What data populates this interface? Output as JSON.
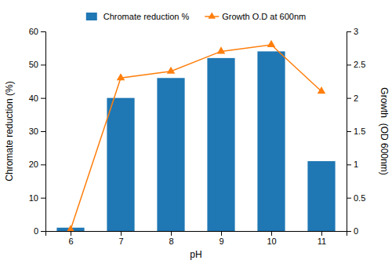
{
  "chart_data": {
    "type": "bar",
    "xlabel": "pH",
    "ylabel": "Chromate reduction (%)",
    "y2label": "Growth  (OD 600nm)",
    "x": [
      6,
      7,
      8,
      9,
      10,
      11
    ],
    "series": [
      {
        "name": "Chromate reduction %",
        "type": "bar",
        "values": [
          1,
          40,
          46,
          52,
          54,
          21
        ]
      },
      {
        "name": "Growth O.D at 600nm",
        "type": "line",
        "axis": "y2",
        "marker": "triangle",
        "values": [
          0.02,
          2.3,
          2.4,
          2.7,
          2.8,
          2.1
        ]
      }
    ],
    "xlim": [
      5.5,
      11.5
    ],
    "xticks": [
      6,
      7,
      8,
      9,
      10,
      11
    ],
    "ylim": [
      0,
      60
    ],
    "yticks": [
      0,
      10,
      20,
      30,
      40,
      50,
      60
    ],
    "y2lim": [
      0,
      3
    ],
    "y2ticks": [
      0,
      0.5,
      1,
      1.5,
      2,
      2.5,
      3
    ],
    "grid": false,
    "legend": "top"
  }
}
